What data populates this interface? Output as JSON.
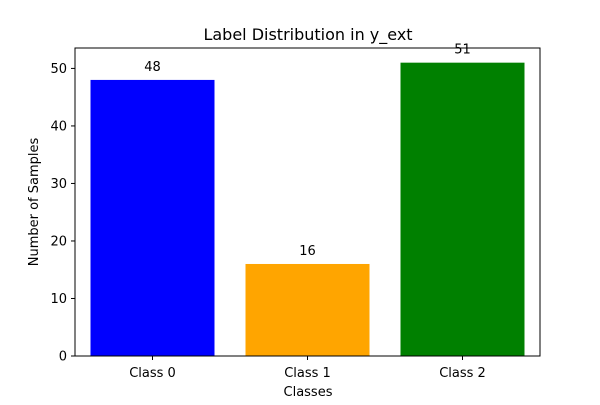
{
  "chart_data": {
    "type": "bar",
    "title": "Label Distribution in y_ext",
    "xlabel": "Classes",
    "ylabel": "Number of Samples",
    "categories": [
      "Class 0",
      "Class 1",
      "Class 2"
    ],
    "values": [
      48,
      16,
      51
    ],
    "data_labels": [
      "48",
      "16",
      "51"
    ],
    "bar_colors": [
      "#0000ff",
      "#ffa500",
      "#008000"
    ],
    "ylim": [
      0,
      53.55
    ],
    "yticks": [
      0,
      10,
      20,
      30,
      40,
      50
    ],
    "ytick_labels": [
      "0",
      "10",
      "20",
      "30",
      "40",
      "50"
    ],
    "grid": false,
    "legend": "none"
  }
}
